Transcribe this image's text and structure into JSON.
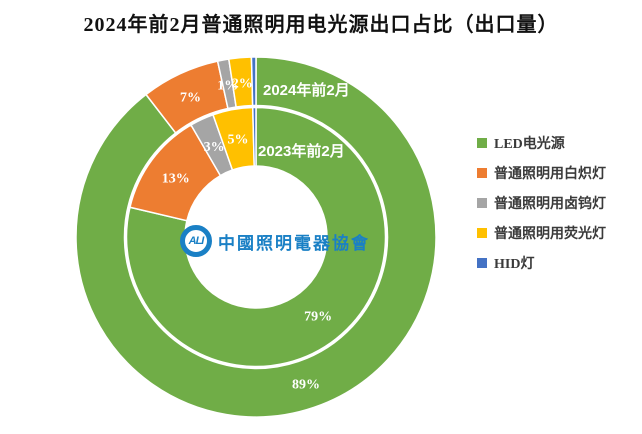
{
  "chart_data": {
    "type": "pie",
    "subtype": "double-donut",
    "title": "2024年前2月普通照明用电光源出口占比（出口量）",
    "legend_position": "right",
    "categories": [
      "LED电光源",
      "普通照明用白炽灯",
      "普通照明用卤钨灯",
      "普通照明用荧光灯",
      "HID灯"
    ],
    "colors": [
      "#70AD47",
      "#ED7D31",
      "#A5A5A5",
      "#FFC000",
      "#4472C4"
    ],
    "rings": [
      {
        "name": "2024年前2月",
        "position": "outer",
        "values": [
          89,
          7,
          1,
          2,
          0.4
        ],
        "labels": [
          "89%",
          "7%",
          "1%",
          "2%",
          ""
        ]
      },
      {
        "name": "2023年前2月",
        "position": "inner",
        "values": [
          79,
          13,
          3,
          5,
          0.4
        ],
        "labels": [
          "79%",
          "13%",
          "3%",
          "5%",
          ""
        ]
      }
    ],
    "notes": "HID灯 share drawn as a thin unlabeled sliver in both rings (estimated <1%)"
  },
  "center_logo": {
    "abbr": "ALI",
    "text": "中國照明電器協會"
  }
}
